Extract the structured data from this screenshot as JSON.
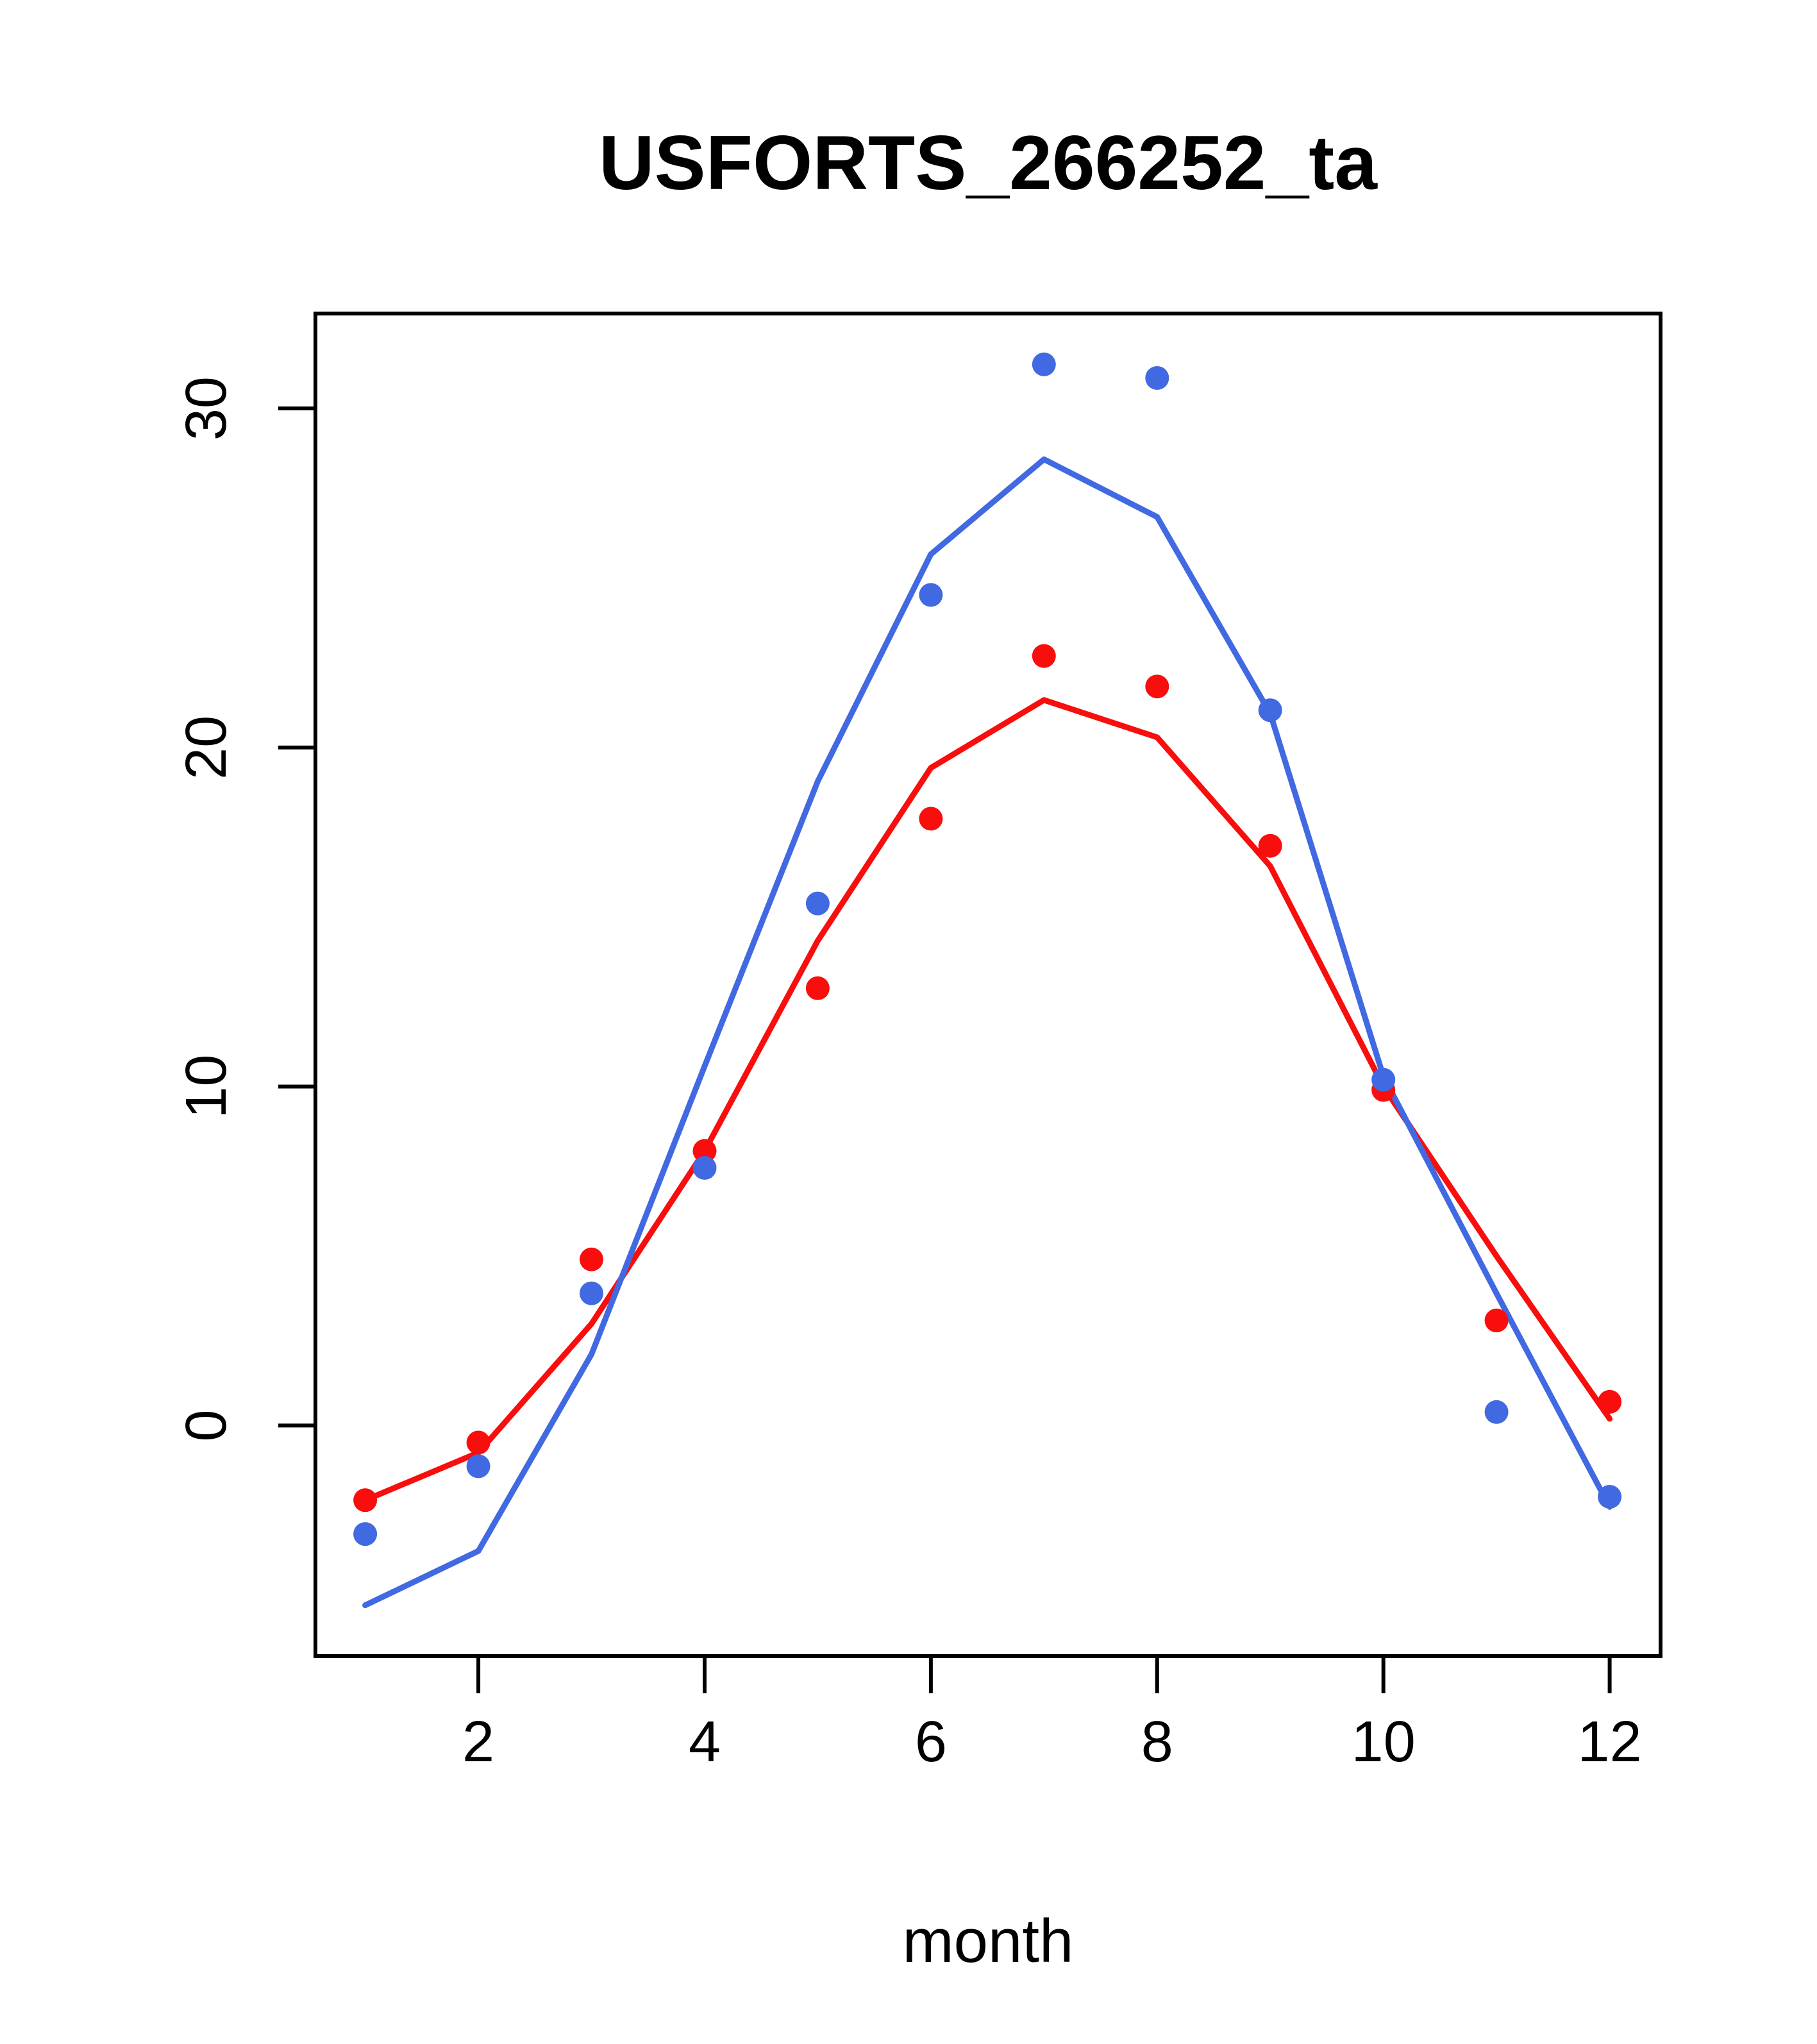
{
  "chart_data": {
    "type": "scatter",
    "title": "USFORTS_266252_ta",
    "xlabel": "month",
    "ylabel": "",
    "x": [
      1,
      2,
      3,
      4,
      5,
      6,
      7,
      8,
      9,
      10,
      11,
      12
    ],
    "x_ticks": [
      2,
      4,
      6,
      8,
      10,
      12
    ],
    "y_ticks": [
      0,
      10,
      20,
      30
    ],
    "xlim": [
      0.56,
      12.45
    ],
    "ylim": [
      -6.8,
      32.8
    ],
    "grid": false,
    "legend": null,
    "series": [
      {
        "name": "red-line",
        "style": "line",
        "color": "#f90d0d",
        "values": [
          -2.2,
          -0.8,
          3.0,
          8.1,
          14.3,
          19.4,
          21.4,
          20.3,
          16.5,
          10.0,
          5.0,
          0.2
        ]
      },
      {
        "name": "blue-line",
        "style": "line",
        "color": "#4169e1",
        "values": [
          -5.3,
          -3.7,
          2.1,
          10.6,
          19.0,
          25.7,
          28.5,
          26.8,
          21.0,
          10.3,
          3.9,
          -2.4
        ]
      },
      {
        "name": "red-points",
        "style": "points",
        "color": "#f90d0d",
        "values": [
          -2.2,
          -0.5,
          4.9,
          8.1,
          12.9,
          17.9,
          22.7,
          21.8,
          17.1,
          9.9,
          3.1,
          0.7
        ]
      },
      {
        "name": "blue-points",
        "style": "points",
        "color": "#4169e1",
        "values": [
          -3.2,
          -1.2,
          3.9,
          7.6,
          15.4,
          24.5,
          31.3,
          30.9,
          21.1,
          10.2,
          0.4,
          -2.1
        ]
      }
    ]
  }
}
